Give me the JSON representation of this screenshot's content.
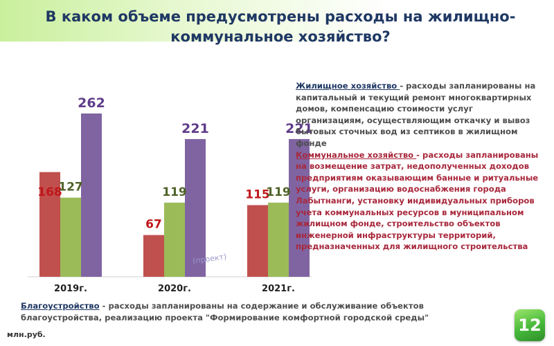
{
  "title": "В каком объеме предусмотрены расходы на жилищно-коммунальное хозяйство?",
  "side_text": {
    "housing_head": "Жилищное хозяйство ",
    "housing_body": "- расходы запланированы на капитальный и текущий ремонт многоквартирных домов, компенсацию стоимости услуг организациям, осуществляющим  откачку и вывоз бытовых сточных вод из септиков в жилищном фонде",
    "communal_head": "Коммунальное хозяйство ",
    "communal_body": "- расходы запланированы на возмещение затрат, недополученных доходов предприятиям оказывающим банные и ритуальные услуги, организацию водоснабжения города Лабытнанги, установку индивидуальных приборов учета коммунальных ресурсов в муниципальном жилищном фонде, строительство объектов инженерной инфраструктуры территорий, предназначенных для жилищного строительства"
  },
  "bottom_text": {
    "head": "Благоустройство",
    "body": " - расходы запланированы на содержание и обслуживание объектов благоустройства, реализацию проекта \"Формирование комфортной городской среды\""
  },
  "units": "млн.руб.",
  "slide_number": "12",
  "chart_data": {
    "type": "bar",
    "categories": [
      "2019г.",
      "2020г.",
      "2021г."
    ],
    "series": [
      {
        "values": [
          168,
          67,
          115
        ],
        "color": "#c0504d",
        "label_color": "#c0161b"
      },
      {
        "values": [
          127,
          119,
          119
        ],
        "color": "#9bbb59",
        "label_color": "#4f6228"
      },
      {
        "values": [
          262,
          221,
          221
        ],
        "color": "#8064a2",
        "label_color": "#5f3c8a"
      }
    ],
    "annotation": "(проект)",
    "ylim": [
      0,
      290
    ]
  }
}
